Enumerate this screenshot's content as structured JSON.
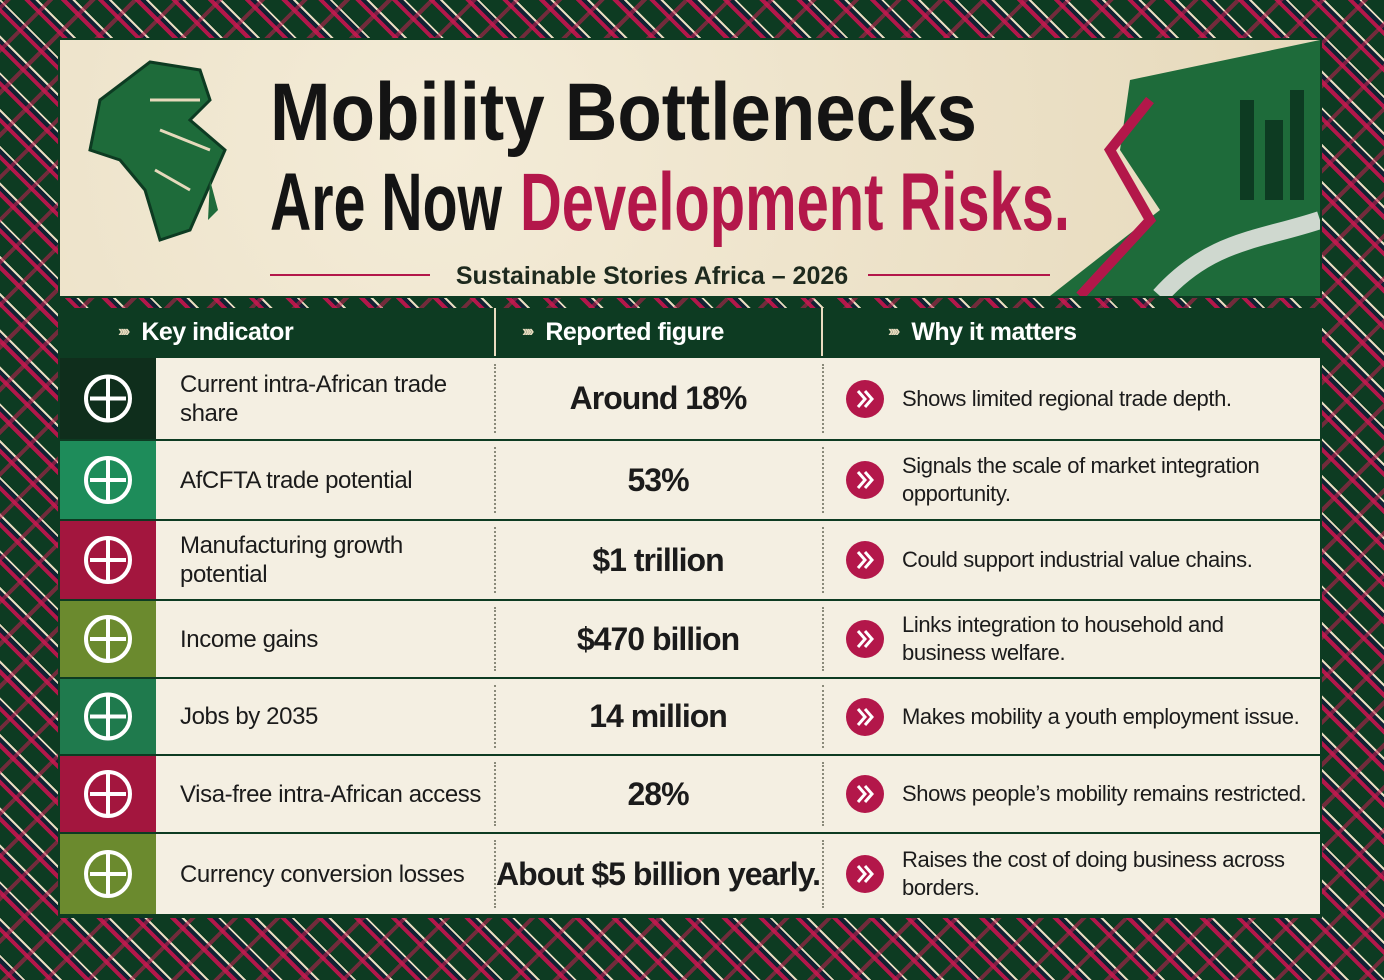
{
  "header": {
    "title_line1": "Mobility Bottlenecks",
    "title_line2_dark": "Are Now",
    "title_line2_red": "Development Risks.",
    "subtitle": "Sustainable Stories Africa – 2026"
  },
  "table": {
    "columns": [
      "Key indicator",
      "Reported figure",
      "Why it matters"
    ],
    "rows": [
      [
        "Current intra-African trade share",
        "Around 18%",
        "Shows limited regional trade depth."
      ],
      [
        "AfCFTA trade potential",
        "53%",
        "Signals the scale of market integration opportunity."
      ],
      [
        "Manufacturing growth potential",
        "$1 trillion",
        "Could support industrial value chains."
      ],
      [
        "Income gains",
        "$470 billion",
        "Links integration to household and business welfare."
      ],
      [
        "Jobs by 2035",
        "14 million",
        "Makes mobility a youth employment issue."
      ],
      [
        "Visa-free intra-African access",
        "28%",
        "Shows people’s mobility remains restricted."
      ],
      [
        "Currency conversion losses",
        "About $5 billion yearly.",
        "Raises the cost of doing business across borders."
      ]
    ]
  }
}
